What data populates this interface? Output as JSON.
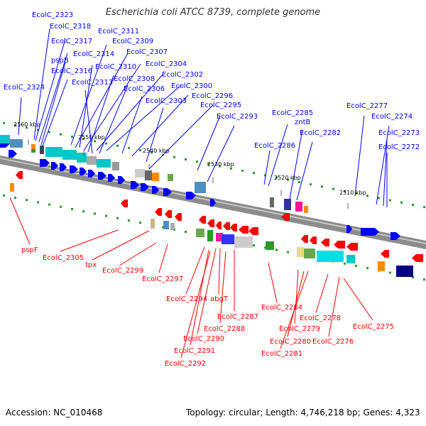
{
  "title": "Escherichia coli ATCC 8739, complete genome",
  "footer": {
    "accession": "Accession: NC_010468",
    "topology": "Topology: circular; Length: 4,746,218 bp; Genes: 4,323"
  },
  "colors": {
    "forward": "#0000ff",
    "reverse": "#ff0000",
    "backbone": "#888888"
  },
  "ticks": [
    "2560 kbp",
    "2550 kbp",
    "2540 kbp",
    "2530 kbp",
    "2520 kbp",
    "2510 kbp"
  ],
  "forward_labels": [
    "EcolC_2323",
    "EcolC_2318",
    "EcolC_2317",
    "pspB",
    "EcolC_2316",
    "EcolC_2324",
    "EcolC_2311",
    "EcolC_2309",
    "EcolC_2314",
    "EcolC_2307",
    "EcolC_2310",
    "EcolC_2304",
    "EcolC_2313",
    "EcolC_2308",
    "EcolC_2302",
    "EcolC_2306",
    "EcolC_2300",
    "EcolC_2303",
    "EcolC_2296",
    "EcolC_2295",
    "EcolC_2293",
    "EcolC_2285",
    "zntB",
    "EcolC_2282",
    "EcolC_2286",
    "EcolC_2277",
    "EcolC_2274",
    "EcolC_2273",
    "EcolC_2272"
  ],
  "reverse_labels": [
    "pspF",
    "EcolC_2305",
    "tpx",
    "EcolC_2299",
    "EcolC_2297",
    "EcolC_2294",
    "abgT",
    "EcolC_2287",
    "EcolC_2288",
    "EcolC_2290",
    "EcolC_2291",
    "EcolC_2292",
    "EcolC_2284",
    "EcolC_2278",
    "EcolC_2279",
    "EcolC_2280",
    "EcolC_2281",
    "EcolC_2276",
    "EcolC_2275"
  ]
}
